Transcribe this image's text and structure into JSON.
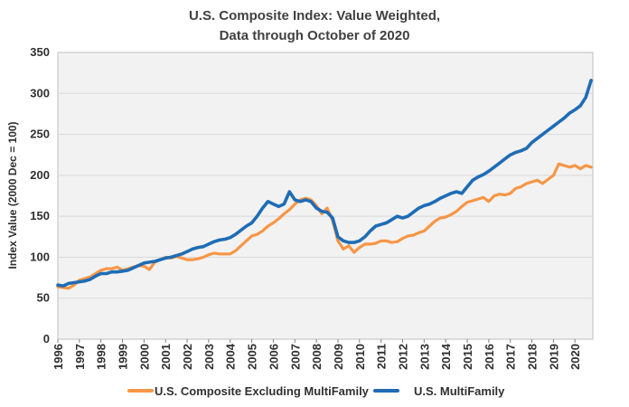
{
  "chart_data": {
    "type": "line",
    "title": "U.S. Composite Index: Value Weighted,",
    "subtitle": "Data through October of 2020",
    "xlabel": "",
    "ylabel": "Index Value (2000 Dec = 100)",
    "xlim": [
      1996,
      2020.83
    ],
    "ylim": [
      0,
      350
    ],
    "yticks": [
      0,
      50,
      100,
      150,
      200,
      250,
      300,
      350
    ],
    "xticks": [
      "1996",
      "1997",
      "1998",
      "1999",
      "2000",
      "2001",
      "2002",
      "2003",
      "2004",
      "2005",
      "2006",
      "2007",
      "2008",
      "2009",
      "2010",
      "2011",
      "2012",
      "2013",
      "2014",
      "2015",
      "2016",
      "2017",
      "2018",
      "2019",
      "2020"
    ],
    "grid": "horizontal",
    "legend_position": "bottom",
    "series": [
      {
        "name": "U.S. Composite Excluding MultiFamily",
        "color": "#f79646",
        "x": [
          1996.0,
          1996.25,
          1996.5,
          1996.75,
          1997.0,
          1997.25,
          1997.5,
          1997.75,
          1998.0,
          1998.25,
          1998.5,
          1998.75,
          1999.0,
          1999.25,
          1999.5,
          1999.75,
          2000.0,
          2000.25,
          2000.5,
          2000.75,
          2001.0,
          2001.25,
          2001.5,
          2001.75,
          2002.0,
          2002.25,
          2002.5,
          2002.75,
          2003.0,
          2003.25,
          2003.5,
          2003.75,
          2004.0,
          2004.25,
          2004.5,
          2004.75,
          2005.0,
          2005.25,
          2005.5,
          2005.75,
          2006.0,
          2006.25,
          2006.5,
          2006.75,
          2007.0,
          2007.25,
          2007.5,
          2007.75,
          2008.0,
          2008.25,
          2008.5,
          2008.75,
          2009.0,
          2009.25,
          2009.5,
          2009.75,
          2010.0,
          2010.25,
          2010.5,
          2010.75,
          2011.0,
          2011.25,
          2011.5,
          2011.75,
          2012.0,
          2012.25,
          2012.5,
          2012.75,
          2013.0,
          2013.25,
          2013.5,
          2013.75,
          2014.0,
          2014.25,
          2014.5,
          2014.75,
          2015.0,
          2015.25,
          2015.5,
          2015.75,
          2016.0,
          2016.25,
          2016.5,
          2016.75,
          2017.0,
          2017.25,
          2017.5,
          2017.75,
          2018.0,
          2018.25,
          2018.5,
          2018.75,
          2019.0,
          2019.25,
          2019.5,
          2019.75,
          2020.0,
          2020.25,
          2020.5,
          2020.75
        ],
        "values": [
          64,
          63,
          62,
          66,
          72,
          74,
          76,
          80,
          84,
          86,
          86,
          88,
          84,
          86,
          88,
          90,
          89,
          85,
          94,
          97,
          100,
          99,
          101,
          99,
          97,
          97,
          98,
          100,
          103,
          105,
          104,
          104,
          104,
          108,
          114,
          120,
          126,
          128,
          132,
          138,
          142,
          147,
          153,
          158,
          165,
          170,
          172,
          170,
          163,
          153,
          160,
          145,
          120,
          110,
          114,
          106,
          112,
          116,
          116,
          117,
          120,
          120,
          118,
          119,
          123,
          126,
          127,
          130,
          132,
          138,
          144,
          148,
          149,
          152,
          156,
          162,
          167,
          169,
          171,
          173,
          168,
          175,
          177,
          176,
          178,
          184,
          186,
          190,
          192,
          194,
          190,
          195,
          200,
          214,
          212,
          210,
          212,
          208,
          212,
          210
        ]
      },
      {
        "name": "U.S. MultiFamily",
        "color": "#1f6cb5",
        "x": [
          1996.0,
          1996.25,
          1996.5,
          1996.75,
          1997.0,
          1997.25,
          1997.5,
          1997.75,
          1998.0,
          1998.25,
          1998.5,
          1998.75,
          1999.0,
          1999.25,
          1999.5,
          1999.75,
          2000.0,
          2000.25,
          2000.5,
          2000.75,
          2001.0,
          2001.25,
          2001.5,
          2001.75,
          2002.0,
          2002.25,
          2002.5,
          2002.75,
          2003.0,
          2003.25,
          2003.5,
          2003.75,
          2004.0,
          2004.25,
          2004.5,
          2004.75,
          2005.0,
          2005.25,
          2005.5,
          2005.75,
          2006.0,
          2006.25,
          2006.5,
          2006.75,
          2007.0,
          2007.25,
          2007.5,
          2007.75,
          2008.0,
          2008.25,
          2008.5,
          2008.75,
          2009.0,
          2009.25,
          2009.5,
          2009.75,
          2010.0,
          2010.25,
          2010.5,
          2010.75,
          2011.0,
          2011.25,
          2011.5,
          2011.75,
          2012.0,
          2012.25,
          2012.5,
          2012.75,
          2013.0,
          2013.25,
          2013.5,
          2013.75,
          2014.0,
          2014.25,
          2014.5,
          2014.75,
          2015.0,
          2015.25,
          2015.5,
          2015.75,
          2016.0,
          2016.25,
          2016.5,
          2016.75,
          2017.0,
          2017.25,
          2017.5,
          2017.75,
          2018.0,
          2018.25,
          2018.5,
          2018.75,
          2019.0,
          2019.25,
          2019.5,
          2019.75,
          2020.0,
          2020.25,
          2020.5,
          2020.75
        ],
        "values": [
          66,
          65,
          68,
          69,
          70,
          71,
          73,
          77,
          80,
          80,
          82,
          82,
          83,
          84,
          87,
          90,
          93,
          94,
          95,
          97,
          99,
          100,
          102,
          104,
          107,
          110,
          112,
          113,
          116,
          119,
          121,
          122,
          124,
          128,
          133,
          138,
          142,
          150,
          160,
          168,
          165,
          162,
          165,
          180,
          170,
          168,
          170,
          168,
          160,
          156,
          155,
          148,
          125,
          120,
          118,
          118,
          120,
          125,
          132,
          138,
          140,
          142,
          146,
          150,
          148,
          150,
          155,
          160,
          163,
          165,
          168,
          172,
          175,
          178,
          180,
          178,
          186,
          194,
          198,
          201,
          205,
          210,
          215,
          220,
          225,
          228,
          230,
          233,
          240,
          245,
          250,
          255,
          260,
          265,
          270,
          276,
          280,
          285,
          295,
          316
        ]
      }
    ]
  }
}
